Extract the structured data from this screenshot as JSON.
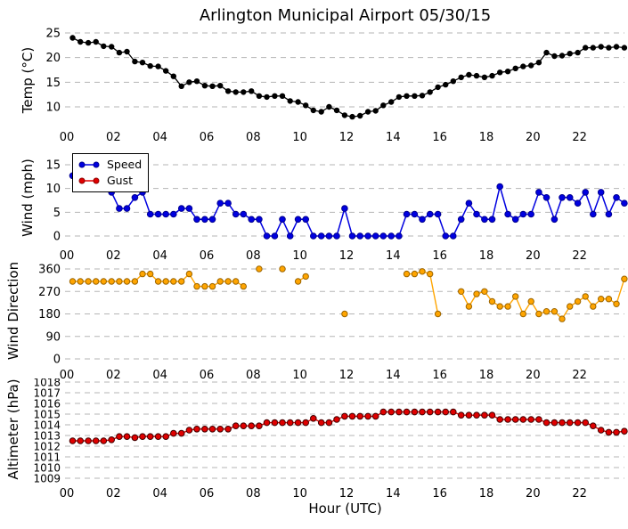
{
  "title": "Arlington Municipal Airport 05/30/15",
  "xlabel": "Hour (UTC)",
  "x_ticks": {
    "values": [
      0,
      2,
      4,
      6,
      8,
      10,
      12,
      14,
      16,
      18,
      20,
      22
    ],
    "labels": [
      "00",
      "02",
      "04",
      "06",
      "08",
      "10",
      "12",
      "14",
      "16",
      "18",
      "20",
      "22"
    ]
  },
  "x_hours": [
    0.25,
    0.58,
    0.92,
    1.25,
    1.58,
    1.92,
    2.25,
    2.58,
    2.92,
    3.25,
    3.58,
    3.92,
    4.25,
    4.58,
    4.92,
    5.25,
    5.58,
    5.92,
    6.25,
    6.58,
    6.92,
    7.25,
    7.58,
    7.92,
    8.25,
    8.58,
    8.92,
    9.25,
    9.58,
    9.92,
    10.25,
    10.58,
    10.92,
    11.25,
    11.58,
    11.92,
    12.25,
    12.58,
    12.92,
    13.25,
    13.58,
    13.92,
    14.25,
    14.58,
    14.92,
    15.25,
    15.58,
    15.92,
    16.25,
    16.58,
    16.92,
    17.25,
    17.58,
    17.92,
    18.25,
    18.58,
    18.92,
    19.25,
    19.58,
    19.92,
    20.25,
    20.58,
    20.92,
    21.25,
    21.58,
    21.92,
    22.25,
    22.58,
    22.92,
    23.25,
    23.58,
    23.92
  ],
  "legend": {
    "speed_label": "Speed",
    "gust_label": "Gust"
  },
  "colors": {
    "temp": "#000000",
    "temp_edge": "#000000",
    "speed": "#0000e0",
    "speed_edge": "#000090",
    "gust": "#e00000",
    "gust_edge": "#900000",
    "direction": "#ffa500",
    "direction_edge": "#9c6500",
    "altimeter": "#e00000",
    "altimeter_edge": "#400000",
    "grid": "#b5b5b5",
    "legend_border": "#000000"
  },
  "chart_data": [
    {
      "type": "line",
      "ylabel": "Temp (°C)",
      "yticks": [
        10,
        15,
        20,
        25
      ],
      "ylim": [
        7,
        26.5
      ],
      "xlim": [
        0,
        24
      ],
      "grid": "dashed-horizontal",
      "series": [
        {
          "name": "Temp",
          "values": [
            24.0,
            23.2,
            23.0,
            23.2,
            22.3,
            22.2,
            21.0,
            21.2,
            19.2,
            19.0,
            18.3,
            18.2,
            17.3,
            16.2,
            14.2,
            15.0,
            15.2,
            14.3,
            14.2,
            14.3,
            13.2,
            13.0,
            13.0,
            13.2,
            12.2,
            12.0,
            12.2,
            12.2,
            11.2,
            11.0,
            10.3,
            9.3,
            9.0,
            10.0,
            9.3,
            8.3,
            8.0,
            8.2,
            9.0,
            9.2,
            10.3,
            11.0,
            12.0,
            12.2,
            12.2,
            12.3,
            13.0,
            14.0,
            14.5,
            15.2,
            16.0,
            16.5,
            16.3,
            16.0,
            16.3,
            17.0,
            17.2,
            17.8,
            18.2,
            18.4,
            19.0,
            21.0,
            20.3,
            20.4,
            20.8,
            21.0,
            22.0,
            22.0,
            22.2,
            22.0,
            22.2,
            22.0
          ]
        }
      ]
    },
    {
      "type": "line",
      "ylabel": "Wind (mph)",
      "yticks": [
        0,
        5,
        10,
        15
      ],
      "ylim": [
        -1,
        17.5
      ],
      "xlim": [
        0,
        24
      ],
      "grid": "dashed-horizontal",
      "legend_position": "upper-left",
      "series": [
        {
          "name": "Speed",
          "values": [
            12.7,
            11.5,
            10.4,
            10.4,
            10.4,
            9.2,
            5.8,
            5.8,
            8.1,
            9.2,
            4.6,
            4.6,
            4.6,
            4.6,
            5.8,
            5.8,
            3.5,
            3.5,
            3.5,
            6.9,
            6.9,
            4.6,
            4.6,
            3.5,
            3.5,
            0,
            0,
            3.5,
            0,
            3.5,
            3.5,
            0,
            0,
            0,
            0,
            5.8,
            0,
            0,
            0,
            0,
            0,
            0,
            0,
            4.6,
            4.6,
            3.5,
            4.6,
            4.6,
            0,
            0,
            3.5,
            6.9,
            4.6,
            3.5,
            3.5,
            10.4,
            4.6,
            3.5,
            4.6,
            4.6,
            9.2,
            8.1,
            3.5,
            8.1,
            8.1,
            6.9,
            9.2,
            4.6,
            9.2,
            4.6,
            8.1,
            6.9
          ]
        },
        {
          "name": "Gust",
          "values": []
        }
      ]
    },
    {
      "type": "line",
      "ylabel": "Wind Direction",
      "yticks": [
        0,
        90,
        180,
        270,
        360
      ],
      "ylim": [
        0,
        385
      ],
      "xlim": [
        0,
        24
      ],
      "grid": "dashed-horizontal",
      "series": [
        {
          "name": "Direction",
          "values": [
            310,
            310,
            310,
            310,
            310,
            310,
            310,
            310,
            310,
            340,
            340,
            310,
            310,
            310,
            310,
            340,
            290,
            290,
            290,
            310,
            310,
            310,
            290,
            null,
            360,
            null,
            null,
            360,
            null,
            310,
            330,
            null,
            null,
            null,
            null,
            180,
            null,
            null,
            null,
            null,
            null,
            null,
            null,
            340,
            340,
            350,
            340,
            180,
            null,
            null,
            270,
            210,
            260,
            270,
            230,
            210,
            210,
            250,
            180,
            230,
            180,
            190,
            190,
            160,
            210,
            230,
            250,
            210,
            240,
            240,
            220,
            320
          ]
        }
      ]
    },
    {
      "type": "line",
      "ylabel": "Altimeter (hPa)",
      "yticks": [
        1009,
        1010,
        1011,
        1012,
        1013,
        1014,
        1015,
        1016,
        1017,
        1018
      ],
      "ylim": [
        1008.5,
        1018.4
      ],
      "xlim": [
        0,
        24
      ],
      "grid": "dashed-horizontal",
      "series": [
        {
          "name": "Altimeter",
          "values": [
            1012.5,
            1012.5,
            1012.5,
            1012.5,
            1012.5,
            1012.6,
            1012.9,
            1012.9,
            1012.8,
            1012.9,
            1012.9,
            1012.9,
            1012.9,
            1013.2,
            1013.2,
            1013.5,
            1013.6,
            1013.6,
            1013.6,
            1013.6,
            1013.6,
            1013.9,
            1013.9,
            1013.9,
            1013.9,
            1014.2,
            1014.2,
            1014.2,
            1014.2,
            1014.2,
            1014.2,
            1014.6,
            1014.2,
            1014.2,
            1014.5,
            1014.8,
            1014.8,
            1014.8,
            1014.8,
            1014.8,
            1015.2,
            1015.2,
            1015.2,
            1015.2,
            1015.2,
            1015.2,
            1015.2,
            1015.2,
            1015.2,
            1015.2,
            1014.9,
            1014.9,
            1014.9,
            1014.9,
            1014.9,
            1014.5,
            1014.5,
            1014.5,
            1014.5,
            1014.5,
            1014.5,
            1014.2,
            1014.2,
            1014.2,
            1014.2,
            1014.2,
            1014.2,
            1013.9,
            1013.5,
            1013.3,
            1013.3,
            1013.4
          ]
        }
      ]
    }
  ]
}
